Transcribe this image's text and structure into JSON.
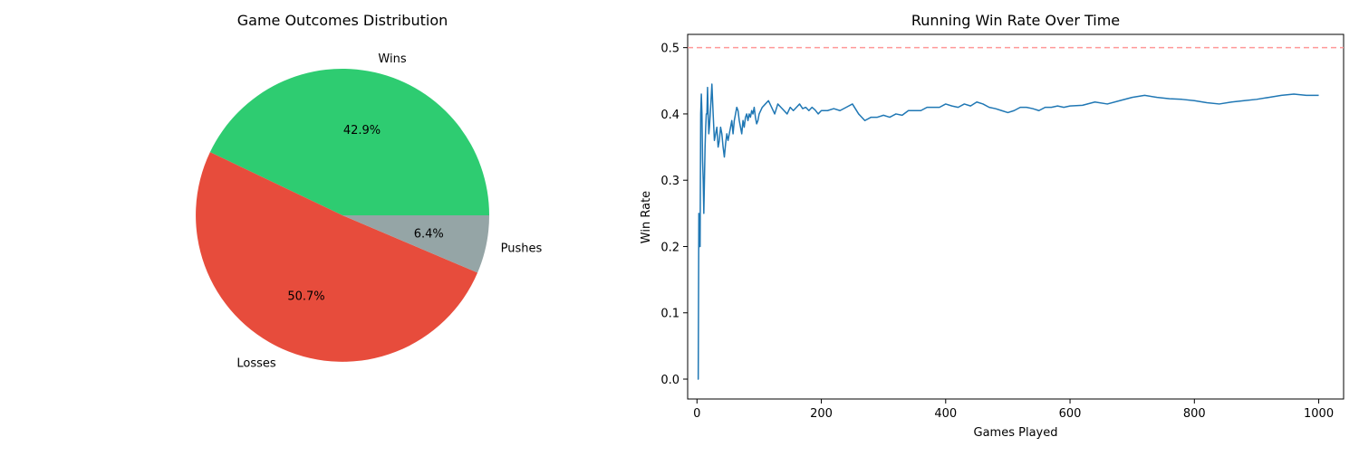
{
  "chart_data": [
    {
      "type": "pie",
      "title": "Game Outcomes Distribution",
      "categories": [
        "Wins",
        "Losses",
        "Pushes"
      ],
      "values": [
        42.9,
        50.7,
        6.4
      ],
      "value_labels": [
        "42.9%",
        "50.7%",
        "6.4%"
      ],
      "colors": [
        "#2ecc71",
        "#e74c3c",
        "#95a5a6"
      ]
    },
    {
      "type": "line",
      "title": "Running Win Rate Over Time",
      "xlabel": "Games Played",
      "ylabel": "Win Rate",
      "xlim": [
        -15,
        1040
      ],
      "ylim": [
        -0.03,
        0.52
      ],
      "xticks": [
        0,
        200,
        400,
        600,
        800,
        1000
      ],
      "xtick_labels": [
        "0",
        "200",
        "400",
        "600",
        "800",
        "1000"
      ],
      "yticks": [
        0.0,
        0.1,
        0.2,
        0.3,
        0.4,
        0.5
      ],
      "ytick_labels": [
        "0.0",
        "0.1",
        "0.2",
        "0.3",
        "0.4",
        "0.5"
      ],
      "grid": false,
      "reference_line": {
        "y": 0.5,
        "color": "#ff9999",
        "style": "dashed"
      },
      "series": [
        {
          "color": "#1f77b4",
          "x": [
            1,
            2,
            3,
            4,
            5,
            6,
            7,
            8,
            9,
            10,
            11,
            12,
            13,
            14,
            15,
            16,
            17,
            18,
            19,
            20,
            22,
            24,
            26,
            28,
            30,
            32,
            34,
            36,
            38,
            40,
            42,
            44,
            46,
            48,
            50,
            52,
            54,
            56,
            58,
            60,
            62,
            64,
            66,
            68,
            70,
            72,
            74,
            76,
            78,
            80,
            82,
            84,
            86,
            88,
            90,
            92,
            94,
            96,
            98,
            100,
            105,
            110,
            115,
            120,
            125,
            130,
            135,
            140,
            145,
            150,
            155,
            160,
            165,
            170,
            175,
            180,
            185,
            190,
            195,
            200,
            210,
            220,
            230,
            240,
            250,
            260,
            270,
            280,
            290,
            300,
            310,
            320,
            330,
            340,
            350,
            360,
            370,
            380,
            390,
            400,
            410,
            420,
            430,
            440,
            450,
            460,
            470,
            480,
            490,
            500,
            510,
            520,
            530,
            540,
            550,
            560,
            570,
            580,
            590,
            600,
            620,
            640,
            660,
            680,
            700,
            720,
            740,
            760,
            780,
            800,
            820,
            840,
            860,
            880,
            900,
            920,
            940,
            960,
            980,
            1000
          ],
          "y": [
            0.0,
            0.0,
            0.25,
            0.2,
            0.2,
            0.4,
            0.43,
            0.4,
            0.33,
            0.3,
            0.25,
            0.3,
            0.35,
            0.38,
            0.4,
            0.4,
            0.44,
            0.4,
            0.37,
            0.38,
            0.41,
            0.445,
            0.4,
            0.36,
            0.37,
            0.38,
            0.35,
            0.36,
            0.38,
            0.37,
            0.35,
            0.335,
            0.355,
            0.37,
            0.36,
            0.37,
            0.38,
            0.39,
            0.37,
            0.39,
            0.4,
            0.41,
            0.405,
            0.39,
            0.38,
            0.37,
            0.39,
            0.38,
            0.395,
            0.4,
            0.39,
            0.4,
            0.395,
            0.405,
            0.4,
            0.41,
            0.395,
            0.385,
            0.39,
            0.4,
            0.41,
            0.415,
            0.42,
            0.41,
            0.4,
            0.415,
            0.41,
            0.405,
            0.4,
            0.41,
            0.405,
            0.41,
            0.415,
            0.408,
            0.41,
            0.405,
            0.41,
            0.406,
            0.4,
            0.405,
            0.405,
            0.408,
            0.405,
            0.41,
            0.415,
            0.4,
            0.39,
            0.395,
            0.395,
            0.398,
            0.395,
            0.4,
            0.398,
            0.405,
            0.405,
            0.405,
            0.41,
            0.41,
            0.41,
            0.415,
            0.412,
            0.41,
            0.415,
            0.412,
            0.418,
            0.415,
            0.41,
            0.408,
            0.405,
            0.402,
            0.405,
            0.41,
            0.41,
            0.408,
            0.405,
            0.41,
            0.41,
            0.412,
            0.41,
            0.412,
            0.413,
            0.418,
            0.415,
            0.42,
            0.425,
            0.428,
            0.425,
            0.423,
            0.422,
            0.42,
            0.417,
            0.415,
            0.418,
            0.42,
            0.422,
            0.425,
            0.428,
            0.43,
            0.428,
            0.428
          ]
        }
      ]
    }
  ]
}
